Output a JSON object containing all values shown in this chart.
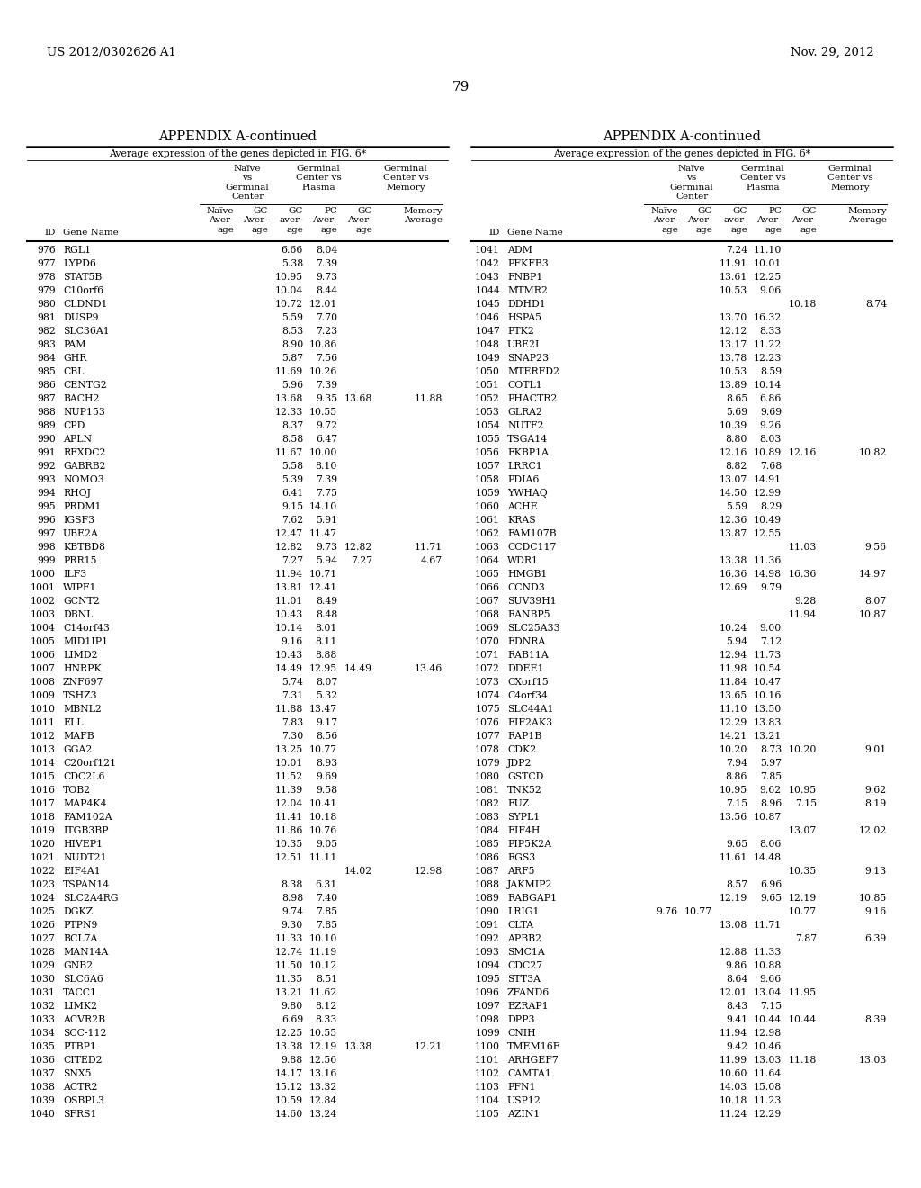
{
  "page_header_left": "US 2012/0302626 A1",
  "page_header_right": "Nov. 29, 2012",
  "page_number": "79",
  "appendix_title": "APPENDIX A-continued",
  "subtitle": "Average expression of the genes depicted in FIG. 6*",
  "left_table": [
    [
      "976",
      "RGL1",
      "",
      "",
      "6.66",
      "8.04",
      "",
      ""
    ],
    [
      "977",
      "LYPD6",
      "",
      "",
      "5.38",
      "7.39",
      "",
      ""
    ],
    [
      "978",
      "STAT5B",
      "",
      "",
      "10.95",
      "9.73",
      "",
      ""
    ],
    [
      "979",
      "C10orf6",
      "",
      "",
      "10.04",
      "8.44",
      "",
      ""
    ],
    [
      "980",
      "CLDND1",
      "",
      "",
      "10.72",
      "12.01",
      "",
      ""
    ],
    [
      "981",
      "DUSP9",
      "",
      "",
      "5.59",
      "7.70",
      "",
      ""
    ],
    [
      "982",
      "SLC36A1",
      "",
      "",
      "8.53",
      "7.23",
      "",
      ""
    ],
    [
      "983",
      "PAM",
      "",
      "",
      "8.90",
      "10.86",
      "",
      ""
    ],
    [
      "984",
      "GHR",
      "",
      "",
      "5.87",
      "7.56",
      "",
      ""
    ],
    [
      "985",
      "CBL",
      "",
      "",
      "11.69",
      "10.26",
      "",
      ""
    ],
    [
      "986",
      "CENTG2",
      "",
      "",
      "5.96",
      "7.39",
      "",
      ""
    ],
    [
      "987",
      "BACH2",
      "",
      "",
      "13.68",
      "9.35",
      "13.68",
      "11.88"
    ],
    [
      "988",
      "NUP153",
      "",
      "",
      "12.33",
      "10.55",
      "",
      ""
    ],
    [
      "989",
      "CPD",
      "",
      "",
      "8.37",
      "9.72",
      "",
      ""
    ],
    [
      "990",
      "APLN",
      "",
      "",
      "8.58",
      "6.47",
      "",
      ""
    ],
    [
      "991",
      "RFXDC2",
      "",
      "",
      "11.67",
      "10.00",
      "",
      ""
    ],
    [
      "992",
      "GABRB2",
      "",
      "",
      "5.58",
      "8.10",
      "",
      ""
    ],
    [
      "993",
      "NOMO3",
      "",
      "",
      "5.39",
      "7.39",
      "",
      ""
    ],
    [
      "994",
      "RHOJ",
      "",
      "",
      "6.41",
      "7.75",
      "",
      ""
    ],
    [
      "995",
      "PRDM1",
      "",
      "",
      "9.15",
      "14.10",
      "",
      ""
    ],
    [
      "996",
      "IGSF3",
      "",
      "",
      "7.62",
      "5.91",
      "",
      ""
    ],
    [
      "997",
      "UBE2A",
      "",
      "",
      "12.47",
      "11.47",
      "",
      ""
    ],
    [
      "998",
      "KBTBD8",
      "",
      "",
      "12.82",
      "9.73",
      "12.82",
      "11.71"
    ],
    [
      "999",
      "PRR15",
      "",
      "",
      "7.27",
      "5.94",
      "7.27",
      "4.67"
    ],
    [
      "1000",
      "ILF3",
      "",
      "",
      "11.94",
      "10.71",
      "",
      ""
    ],
    [
      "1001",
      "WIPF1",
      "",
      "",
      "13.81",
      "12.41",
      "",
      ""
    ],
    [
      "1002",
      "GCNT2",
      "",
      "",
      "11.01",
      "8.49",
      "",
      ""
    ],
    [
      "1003",
      "DBNL",
      "",
      "",
      "10.43",
      "8.48",
      "",
      ""
    ],
    [
      "1004",
      "C14orf43",
      "",
      "",
      "10.14",
      "8.01",
      "",
      ""
    ],
    [
      "1005",
      "MID1IP1",
      "",
      "",
      "9.16",
      "8.11",
      "",
      ""
    ],
    [
      "1006",
      "LIMD2",
      "",
      "",
      "10.43",
      "8.88",
      "",
      ""
    ],
    [
      "1007",
      "HNRPK",
      "",
      "",
      "14.49",
      "12.95",
      "14.49",
      "13.46"
    ],
    [
      "1008",
      "ZNF697",
      "",
      "",
      "5.74",
      "8.07",
      "",
      ""
    ],
    [
      "1009",
      "TSHZ3",
      "",
      "",
      "7.31",
      "5.32",
      "",
      ""
    ],
    [
      "1010",
      "MBNL2",
      "",
      "",
      "11.88",
      "13.47",
      "",
      ""
    ],
    [
      "1011",
      "ELL",
      "",
      "",
      "7.83",
      "9.17",
      "",
      ""
    ],
    [
      "1012",
      "MAFB",
      "",
      "",
      "7.30",
      "8.56",
      "",
      ""
    ],
    [
      "1013",
      "GGA2",
      "",
      "",
      "13.25",
      "10.77",
      "",
      ""
    ],
    [
      "1014",
      "C20orf121",
      "",
      "",
      "10.01",
      "8.93",
      "",
      ""
    ],
    [
      "1015",
      "CDC2L6",
      "",
      "",
      "11.52",
      "9.69",
      "",
      ""
    ],
    [
      "1016",
      "TOB2",
      "",
      "",
      "11.39",
      "9.58",
      "",
      ""
    ],
    [
      "1017",
      "MAP4K4",
      "",
      "",
      "12.04",
      "10.41",
      "",
      ""
    ],
    [
      "1018",
      "FAM102A",
      "",
      "",
      "11.41",
      "10.18",
      "",
      ""
    ],
    [
      "1019",
      "ITGB3BP",
      "",
      "",
      "11.86",
      "10.76",
      "",
      ""
    ],
    [
      "1020",
      "HIVEP1",
      "",
      "",
      "10.35",
      "9.05",
      "",
      ""
    ],
    [
      "1021",
      "NUDT21",
      "",
      "",
      "12.51",
      "11.11",
      "",
      ""
    ],
    [
      "1022",
      "EIF4A1",
      "",
      "",
      "",
      "",
      "14.02",
      "12.98"
    ],
    [
      "1023",
      "TSPAN14",
      "",
      "",
      "8.38",
      "6.31",
      "",
      ""
    ],
    [
      "1024",
      "SLC2A4RG",
      "",
      "",
      "8.98",
      "7.40",
      "",
      ""
    ],
    [
      "1025",
      "DGKZ",
      "",
      "",
      "9.74",
      "7.85",
      "",
      ""
    ],
    [
      "1026",
      "PTPN9",
      "",
      "",
      "9.30",
      "7.85",
      "",
      ""
    ],
    [
      "1027",
      "BCL7A",
      "",
      "",
      "11.33",
      "10.10",
      "",
      ""
    ],
    [
      "1028",
      "MAN14A",
      "",
      "",
      "12.74",
      "11.19",
      "",
      ""
    ],
    [
      "1029",
      "GNB2",
      "",
      "",
      "11.50",
      "10.12",
      "",
      ""
    ],
    [
      "1030",
      "SLC6A6",
      "",
      "",
      "11.35",
      "8.51",
      "",
      ""
    ],
    [
      "1031",
      "TACC1",
      "",
      "",
      "13.21",
      "11.62",
      "",
      ""
    ],
    [
      "1032",
      "LIMK2",
      "",
      "",
      "9.80",
      "8.12",
      "",
      ""
    ],
    [
      "1033",
      "ACVR2B",
      "",
      "",
      "6.69",
      "8.33",
      "",
      ""
    ],
    [
      "1034",
      "SCC-112",
      "",
      "",
      "12.25",
      "10.55",
      "",
      ""
    ],
    [
      "1035",
      "PTBP1",
      "",
      "",
      "13.38",
      "12.19",
      "13.38",
      "12.21"
    ],
    [
      "1036",
      "CITED2",
      "",
      "",
      "9.88",
      "12.56",
      "",
      ""
    ],
    [
      "1037",
      "SNX5",
      "",
      "",
      "14.17",
      "13.16",
      "",
      ""
    ],
    [
      "1038",
      "ACTR2",
      "",
      "",
      "15.12",
      "13.32",
      "",
      ""
    ],
    [
      "1039",
      "OSBPL3",
      "",
      "",
      "10.59",
      "12.84",
      "",
      ""
    ],
    [
      "1040",
      "SFRS1",
      "",
      "",
      "14.60",
      "13.24",
      "",
      ""
    ]
  ],
  "right_table": [
    [
      "1041",
      "ADM",
      "",
      "",
      "7.24",
      "11.10",
      "",
      ""
    ],
    [
      "1042",
      "PFKFB3",
      "",
      "",
      "11.91",
      "10.01",
      "",
      ""
    ],
    [
      "1043",
      "FNBP1",
      "",
      "",
      "13.61",
      "12.25",
      "",
      ""
    ],
    [
      "1044",
      "MTMR2",
      "",
      "",
      "10.53",
      "9.06",
      "",
      ""
    ],
    [
      "1045",
      "DDHD1",
      "",
      "",
      "",
      "",
      "10.18",
      "8.74"
    ],
    [
      "1046",
      "HSPA5",
      "",
      "",
      "13.70",
      "16.32",
      "",
      ""
    ],
    [
      "1047",
      "PTK2",
      "",
      "",
      "12.12",
      "8.33",
      "",
      ""
    ],
    [
      "1048",
      "UBE2I",
      "",
      "",
      "13.17",
      "11.22",
      "",
      ""
    ],
    [
      "1049",
      "SNAP23",
      "",
      "",
      "13.78",
      "12.23",
      "",
      ""
    ],
    [
      "1050",
      "MTERFD2",
      "",
      "",
      "10.53",
      "8.59",
      "",
      ""
    ],
    [
      "1051",
      "COTL1",
      "",
      "",
      "13.89",
      "10.14",
      "",
      ""
    ],
    [
      "1052",
      "PHACTR2",
      "",
      "",
      "8.65",
      "6.86",
      "",
      ""
    ],
    [
      "1053",
      "GLRA2",
      "",
      "",
      "5.69",
      "9.69",
      "",
      ""
    ],
    [
      "1054",
      "NUTF2",
      "",
      "",
      "10.39",
      "9.26",
      "",
      ""
    ],
    [
      "1055",
      "TSGA14",
      "",
      "",
      "8.80",
      "8.03",
      "",
      ""
    ],
    [
      "1056",
      "FKBP1A",
      "",
      "",
      "12.16",
      "10.89",
      "12.16",
      "10.82"
    ],
    [
      "1057",
      "LRRC1",
      "",
      "",
      "8.82",
      "7.68",
      "",
      ""
    ],
    [
      "1058",
      "PDIA6",
      "",
      "",
      "13.07",
      "14.91",
      "",
      ""
    ],
    [
      "1059",
      "YWHAQ",
      "",
      "",
      "14.50",
      "12.99",
      "",
      ""
    ],
    [
      "1060",
      "ACHE",
      "",
      "",
      "5.59",
      "8.29",
      "",
      ""
    ],
    [
      "1061",
      "KRAS",
      "",
      "",
      "12.36",
      "10.49",
      "",
      ""
    ],
    [
      "1062",
      "FAM107B",
      "",
      "",
      "13.87",
      "12.55",
      "",
      ""
    ],
    [
      "1063",
      "CCDC117",
      "",
      "",
      "",
      "",
      "11.03",
      "9.56"
    ],
    [
      "1064",
      "WDR1",
      "",
      "",
      "13.38",
      "11.36",
      "",
      ""
    ],
    [
      "1065",
      "HMGB1",
      "",
      "",
      "16.36",
      "14.98",
      "16.36",
      "14.97"
    ],
    [
      "1066",
      "CCND3",
      "",
      "",
      "12.69",
      "9.79",
      "",
      ""
    ],
    [
      "1067",
      "SUV39H1",
      "",
      "",
      "",
      "",
      "9.28",
      "8.07"
    ],
    [
      "1068",
      "RANBP5",
      "",
      "",
      "",
      "",
      "11.94",
      "10.87"
    ],
    [
      "1069",
      "SLC25A33",
      "",
      "",
      "10.24",
      "9.00",
      "",
      ""
    ],
    [
      "1070",
      "EDNRA",
      "",
      "",
      "5.94",
      "7.12",
      "",
      ""
    ],
    [
      "1071",
      "RAB11A",
      "",
      "",
      "12.94",
      "11.73",
      "",
      ""
    ],
    [
      "1072",
      "DDEE1",
      "",
      "",
      "11.98",
      "10.54",
      "",
      ""
    ],
    [
      "1073",
      "CXorf15",
      "",
      "",
      "11.84",
      "10.47",
      "",
      ""
    ],
    [
      "1074",
      "C4orf34",
      "",
      "",
      "13.65",
      "10.16",
      "",
      ""
    ],
    [
      "1075",
      "SLC44A1",
      "",
      "",
      "11.10",
      "13.50",
      "",
      ""
    ],
    [
      "1076",
      "EIF2AK3",
      "",
      "",
      "12.29",
      "13.83",
      "",
      ""
    ],
    [
      "1077",
      "RAP1B",
      "",
      "",
      "14.21",
      "13.21",
      "",
      ""
    ],
    [
      "1078",
      "CDK2",
      "",
      "",
      "10.20",
      "8.73",
      "10.20",
      "9.01"
    ],
    [
      "1079",
      "JDP2",
      "",
      "",
      "7.94",
      "5.97",
      "",
      ""
    ],
    [
      "1080",
      "GSTCD",
      "",
      "",
      "8.86",
      "7.85",
      "",
      ""
    ],
    [
      "1081",
      "TNK52",
      "",
      "",
      "10.95",
      "9.62",
      "10.95",
      "9.62"
    ],
    [
      "1082",
      "FUZ",
      "",
      "",
      "7.15",
      "8.96",
      "7.15",
      "8.19"
    ],
    [
      "1083",
      "SYPL1",
      "",
      "",
      "13.56",
      "10.87",
      "",
      ""
    ],
    [
      "1084",
      "EIF4H",
      "",
      "",
      "",
      "",
      "13.07",
      "12.02"
    ],
    [
      "1085",
      "PIP5K2A",
      "",
      "",
      "9.65",
      "8.06",
      "",
      ""
    ],
    [
      "1086",
      "RGS3",
      "",
      "",
      "11.61",
      "14.48",
      "",
      ""
    ],
    [
      "1087",
      "ARF5",
      "",
      "",
      "",
      "",
      "10.35",
      "9.13"
    ],
    [
      "1088",
      "JAKMIP2",
      "",
      "",
      "8.57",
      "6.96",
      "",
      ""
    ],
    [
      "1089",
      "RABGAP1",
      "",
      "",
      "12.19",
      "9.65",
      "12.19",
      "10.85"
    ],
    [
      "1090",
      "LRIG1",
      "9.76",
      "10.77",
      "",
      "",
      "10.77",
      "9.16"
    ],
    [
      "1091",
      "CLTA",
      "",
      "",
      "13.08",
      "11.71",
      "",
      ""
    ],
    [
      "1092",
      "APBB2",
      "",
      "",
      "",
      "",
      "7.87",
      "6.39"
    ],
    [
      "1093",
      "SMC1A",
      "",
      "",
      "12.88",
      "11.33",
      "",
      ""
    ],
    [
      "1094",
      "CDC27",
      "",
      "",
      "9.86",
      "10.88",
      "",
      ""
    ],
    [
      "1095",
      "STT3A",
      "",
      "",
      "8.64",
      "9.66",
      "",
      ""
    ],
    [
      "1096",
      "ZFAND6",
      "",
      "",
      "12.01",
      "13.04",
      "11.95",
      ""
    ],
    [
      "1097",
      "BZRAP1",
      "",
      "",
      "8.43",
      "7.15",
      "",
      ""
    ],
    [
      "1098",
      "DPP3",
      "",
      "",
      "9.41",
      "10.44",
      "10.44",
      "8.39"
    ],
    [
      "1099",
      "CNIH",
      "",
      "",
      "11.94",
      "12.98",
      "",
      ""
    ],
    [
      "1100",
      "TMEM16F",
      "",
      "",
      "9.42",
      "10.46",
      "",
      ""
    ],
    [
      "1101",
      "ARHGEF7",
      "",
      "",
      "11.99",
      "13.03",
      "11.18",
      "13.03"
    ],
    [
      "1102",
      "CAMTA1",
      "",
      "",
      "10.60",
      "11.64",
      "",
      ""
    ],
    [
      "1103",
      "PFN1",
      "",
      "",
      "14.03",
      "15.08",
      "",
      ""
    ],
    [
      "1104",
      "USP12",
      "",
      "",
      "10.18",
      "11.23",
      "",
      ""
    ],
    [
      "1105",
      "AZIN1",
      "",
      "",
      "11.24",
      "12.29",
      "",
      ""
    ]
  ]
}
